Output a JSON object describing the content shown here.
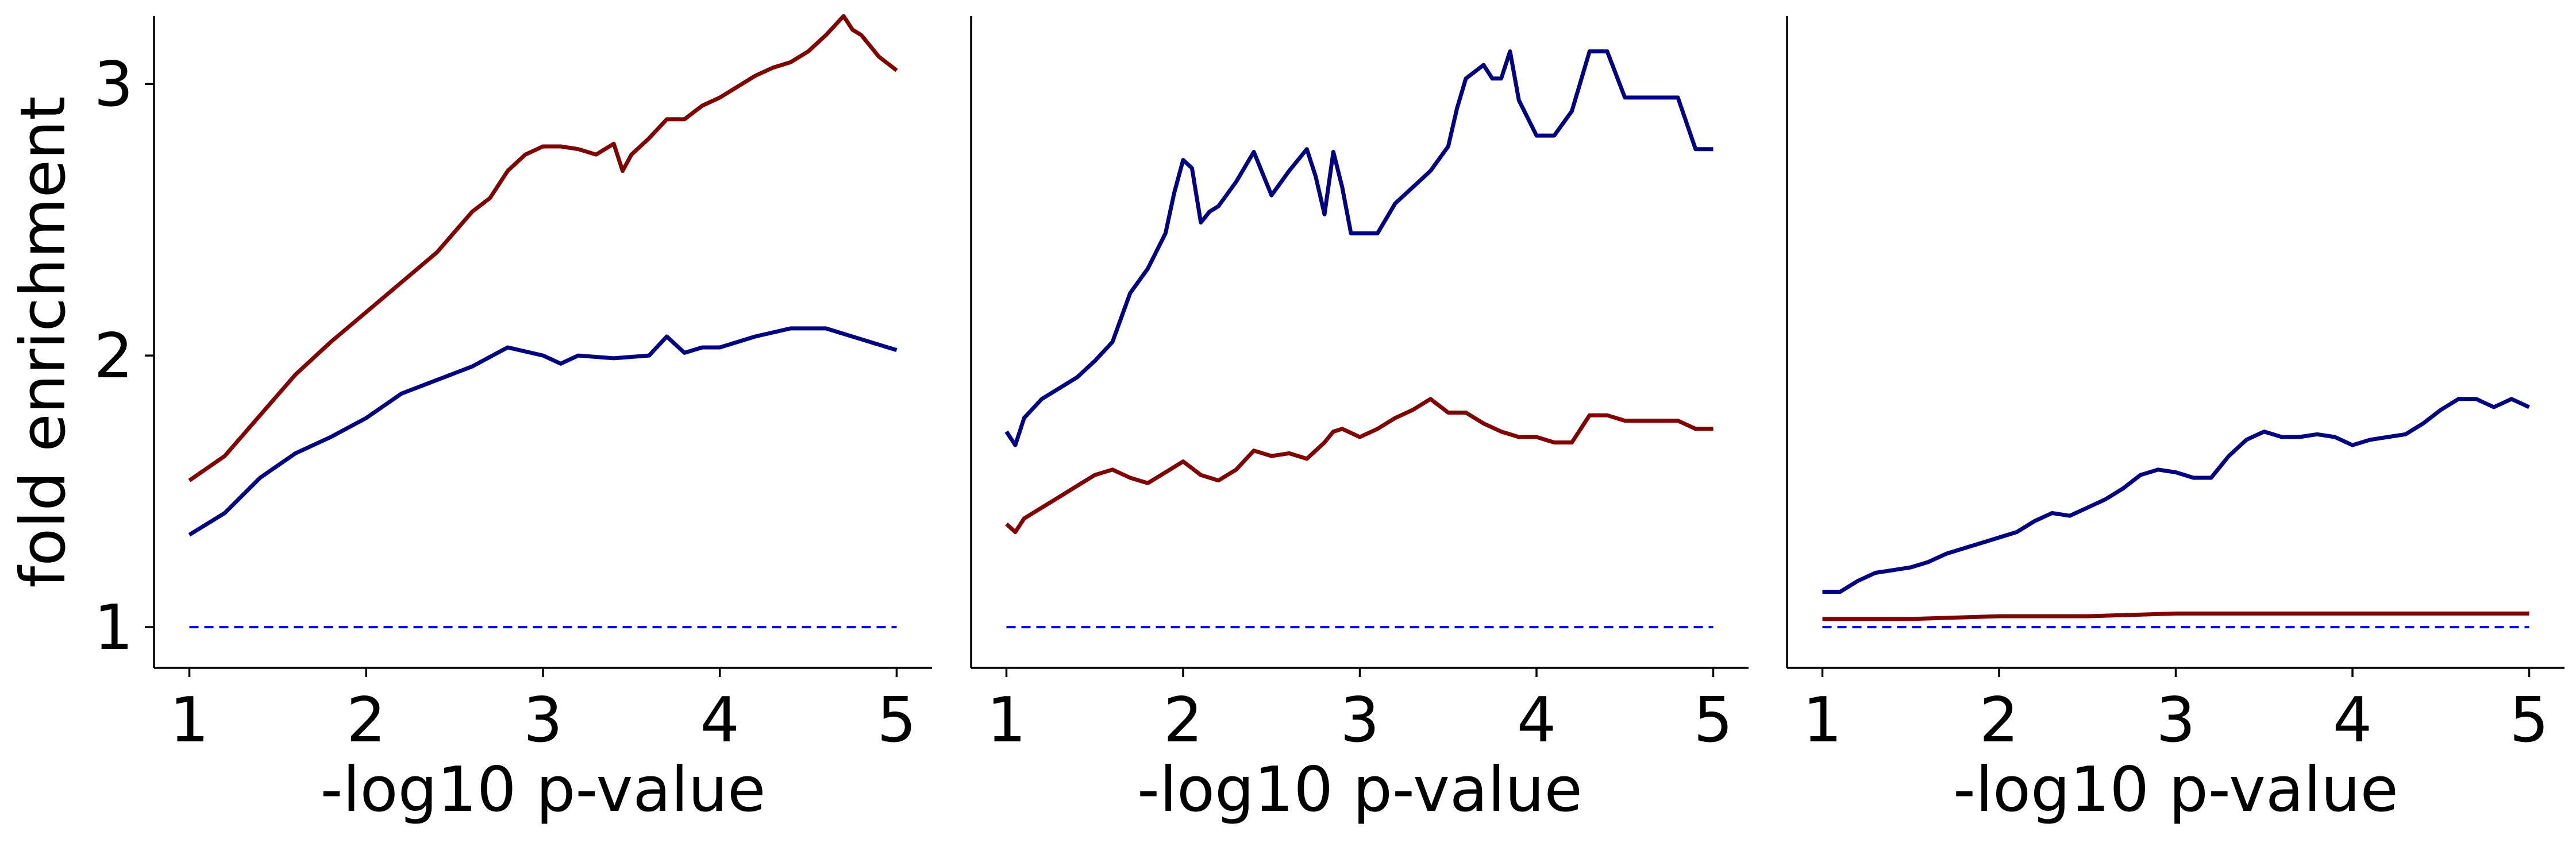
{
  "colors": {
    "dark_red": "#800000",
    "navy": "#000080",
    "baseline": "#0000ff"
  },
  "chart_data": [
    {
      "type": "line",
      "xlabel": "-log10 p-value",
      "ylabel": "fold enrichment",
      "xlim": [
        0.8,
        5.2
      ],
      "ylim": [
        0.85,
        3.25
      ],
      "xticks": [
        1,
        2,
        3,
        4,
        5
      ],
      "yticks": [
        1,
        2,
        3
      ],
      "series": [
        {
          "color": "#800000",
          "style": "solid",
          "x": [
            1.0,
            1.2,
            1.4,
            1.6,
            1.8,
            2.0,
            2.2,
            2.4,
            2.6,
            2.7,
            2.8,
            2.9,
            3.0,
            3.1,
            3.2,
            3.3,
            3.4,
            3.45,
            3.5,
            3.6,
            3.7,
            3.8,
            3.9,
            4.0,
            4.1,
            4.2,
            4.3,
            4.4,
            4.5,
            4.6,
            4.7,
            4.75,
            4.8,
            4.9,
            5.0
          ],
          "y": [
            1.54,
            1.63,
            1.78,
            1.93,
            2.05,
            2.16,
            2.27,
            2.38,
            2.53,
            2.58,
            2.68,
            2.74,
            2.77,
            2.77,
            2.76,
            2.74,
            2.78,
            2.68,
            2.74,
            2.8,
            2.87,
            2.87,
            2.92,
            2.95,
            2.99,
            3.03,
            3.06,
            3.08,
            3.12,
            3.18,
            3.25,
            3.2,
            3.18,
            3.1,
            3.05
          ]
        },
        {
          "color": "#000080",
          "style": "solid",
          "x": [
            1.0,
            1.2,
            1.4,
            1.6,
            1.8,
            2.0,
            2.2,
            2.4,
            2.6,
            2.8,
            3.0,
            3.1,
            3.2,
            3.4,
            3.6,
            3.7,
            3.8,
            3.9,
            4.0,
            4.2,
            4.4,
            4.6,
            4.8,
            5.0
          ],
          "y": [
            1.34,
            1.42,
            1.55,
            1.64,
            1.7,
            1.77,
            1.86,
            1.91,
            1.96,
            2.03,
            2.0,
            1.97,
            2.0,
            1.99,
            2.0,
            2.07,
            2.01,
            2.03,
            2.03,
            2.07,
            2.1,
            2.1,
            2.06,
            2.02
          ]
        },
        {
          "color": "#0000ff",
          "style": "dashed",
          "x": [
            1.0,
            5.0
          ],
          "y": [
            1.0,
            1.0
          ]
        }
      ]
    },
    {
      "type": "line",
      "xlabel": "-log10 p-value",
      "ylabel": "",
      "xlim": [
        0.8,
        5.2
      ],
      "ylim": [
        0.85,
        3.25
      ],
      "xticks": [
        1,
        2,
        3,
        4,
        5
      ],
      "yticks": [],
      "series": [
        {
          "color": "#000080",
          "style": "solid",
          "x": [
            1.0,
            1.05,
            1.1,
            1.2,
            1.3,
            1.4,
            1.5,
            1.6,
            1.7,
            1.8,
            1.9,
            1.95,
            2.0,
            2.05,
            2.1,
            2.15,
            2.2,
            2.3,
            2.4,
            2.5,
            2.6,
            2.7,
            2.75,
            2.8,
            2.85,
            2.9,
            2.95,
            3.0,
            3.1,
            3.2,
            3.3,
            3.4,
            3.5,
            3.55,
            3.6,
            3.7,
            3.75,
            3.8,
            3.85,
            3.9,
            4.0,
            4.1,
            4.2,
            4.3,
            4.4,
            4.5,
            4.6,
            4.7,
            4.8,
            4.9,
            5.0
          ],
          "y": [
            1.72,
            1.67,
            1.77,
            1.84,
            1.88,
            1.92,
            1.98,
            2.05,
            2.23,
            2.32,
            2.45,
            2.6,
            2.72,
            2.69,
            2.49,
            2.53,
            2.55,
            2.64,
            2.75,
            2.59,
            2.68,
            2.76,
            2.66,
            2.52,
            2.75,
            2.62,
            2.45,
            2.45,
            2.45,
            2.56,
            2.62,
            2.68,
            2.77,
            2.91,
            3.02,
            3.07,
            3.02,
            3.02,
            3.12,
            2.94,
            2.81,
            2.81,
            2.9,
            3.12,
            3.12,
            2.95,
            2.95,
            2.95,
            2.95,
            2.76,
            2.76
          ]
        },
        {
          "color": "#800000",
          "style": "solid",
          "x": [
            1.0,
            1.05,
            1.1,
            1.2,
            1.3,
            1.4,
            1.5,
            1.6,
            1.7,
            1.8,
            1.9,
            2.0,
            2.1,
            2.2,
            2.3,
            2.4,
            2.5,
            2.6,
            2.7,
            2.8,
            2.85,
            2.9,
            3.0,
            3.1,
            3.2,
            3.3,
            3.4,
            3.5,
            3.6,
            3.7,
            3.8,
            3.9,
            4.0,
            4.1,
            4.2,
            4.3,
            4.4,
            4.5,
            4.6,
            4.7,
            4.8,
            4.9,
            5.0
          ],
          "y": [
            1.38,
            1.35,
            1.4,
            1.44,
            1.48,
            1.52,
            1.56,
            1.58,
            1.55,
            1.53,
            1.57,
            1.61,
            1.56,
            1.54,
            1.58,
            1.65,
            1.63,
            1.64,
            1.62,
            1.68,
            1.72,
            1.73,
            1.7,
            1.73,
            1.77,
            1.8,
            1.84,
            1.79,
            1.79,
            1.75,
            1.72,
            1.7,
            1.7,
            1.68,
            1.68,
            1.78,
            1.78,
            1.76,
            1.76,
            1.76,
            1.76,
            1.73,
            1.73
          ]
        },
        {
          "color": "#0000ff",
          "style": "dashed",
          "x": [
            1.0,
            5.0
          ],
          "y": [
            1.0,
            1.0
          ]
        }
      ]
    },
    {
      "type": "line",
      "xlabel": "-log10 p-value",
      "ylabel": "",
      "xlim": [
        0.8,
        5.2
      ],
      "ylim": [
        0.85,
        3.25
      ],
      "xticks": [
        1,
        2,
        3,
        4,
        5
      ],
      "yticks": [],
      "series": [
        {
          "color": "#000080",
          "style": "solid",
          "x": [
            1.0,
            1.1,
            1.2,
            1.3,
            1.4,
            1.5,
            1.6,
            1.7,
            1.8,
            1.9,
            2.0,
            2.1,
            2.2,
            2.3,
            2.4,
            2.5,
            2.6,
            2.7,
            2.8,
            2.9,
            3.0,
            3.1,
            3.2,
            3.3,
            3.4,
            3.5,
            3.6,
            3.7,
            3.8,
            3.9,
            4.0,
            4.1,
            4.2,
            4.3,
            4.4,
            4.5,
            4.6,
            4.7,
            4.8,
            4.9,
            5.0
          ],
          "y": [
            1.13,
            1.13,
            1.17,
            1.2,
            1.21,
            1.22,
            1.24,
            1.27,
            1.29,
            1.31,
            1.33,
            1.35,
            1.39,
            1.42,
            1.41,
            1.44,
            1.47,
            1.51,
            1.56,
            1.58,
            1.57,
            1.55,
            1.55,
            1.63,
            1.69,
            1.72,
            1.7,
            1.7,
            1.71,
            1.7,
            1.67,
            1.69,
            1.7,
            1.71,
            1.75,
            1.8,
            1.84,
            1.84,
            1.81,
            1.84,
            1.81
          ]
        },
        {
          "color": "#800000",
          "style": "solid",
          "x": [
            1.0,
            1.5,
            2.0,
            2.5,
            3.0,
            3.5,
            4.0,
            4.5,
            5.0
          ],
          "y": [
            1.03,
            1.03,
            1.04,
            1.04,
            1.05,
            1.05,
            1.05,
            1.05,
            1.05
          ]
        },
        {
          "color": "#0000ff",
          "style": "dashed",
          "x": [
            1.0,
            5.0
          ],
          "y": [
            1.0,
            1.0
          ]
        }
      ]
    }
  ]
}
